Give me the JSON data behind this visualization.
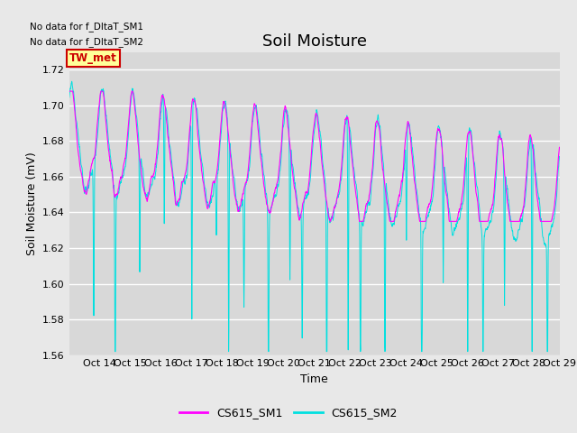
{
  "title": "Soil Moisture",
  "ylabel": "Soil Moisture (mV)",
  "xlabel": "Time",
  "no_data_text_1": "No data for f_DltaT_SM1",
  "no_data_text_2": "No data for f_DltaT_SM2",
  "legend_label_box": "TW_met",
  "legend_label_box_facecolor": "#ffff99",
  "legend_label_box_edgecolor": "#cc0000",
  "legend_label_box_textcolor": "#cc0000",
  "series1_label": "CS615_SM1",
  "series1_color": "#ff00ff",
  "series2_label": "CS615_SM2",
  "series2_color": "#00e0e0",
  "ylim": [
    1.56,
    1.73
  ],
  "yticks": [
    1.56,
    1.58,
    1.6,
    1.62,
    1.64,
    1.66,
    1.68,
    1.7,
    1.72
  ],
  "xtick_labels": [
    "Oct 14",
    "Oct 15",
    "Oct 16",
    "Oct 17",
    "Oct 18",
    "Oct 19",
    "Oct 20",
    "Oct 21",
    "Oct 22",
    "Oct 23",
    "Oct 24",
    "Oct 25",
    "Oct 26",
    "Oct 27",
    "Oct 28",
    "Oct 29"
  ],
  "fig_facecolor": "#e8e8e8",
  "axes_facecolor": "#d8d8d8",
  "grid_color": "#ffffff",
  "title_fontsize": 13,
  "axis_label_fontsize": 9,
  "tick_fontsize": 8,
  "legend_fontsize": 9
}
